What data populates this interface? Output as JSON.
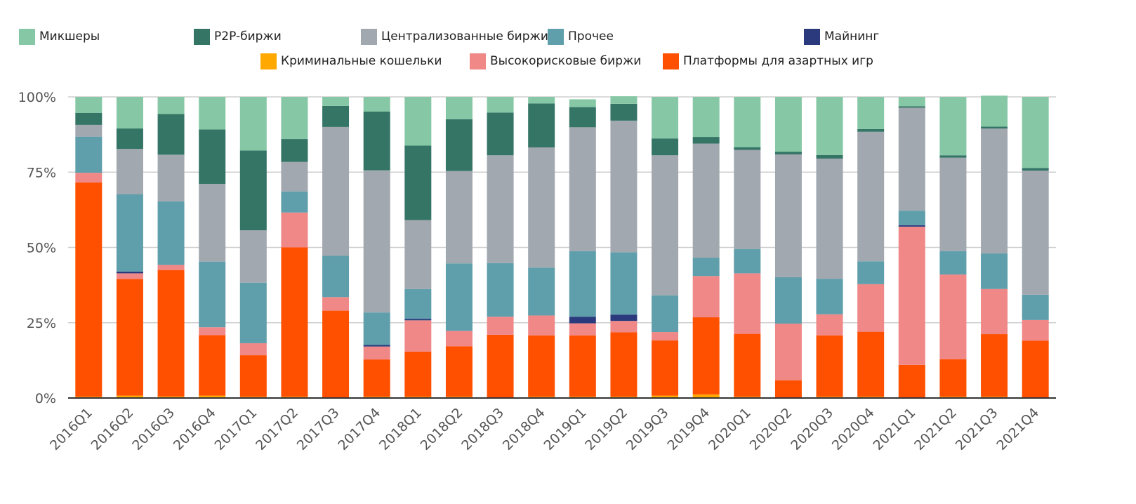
{
  "chart_data": {
    "type": "bar",
    "stacked": true,
    "title": "",
    "xlabel": "",
    "ylabel": "",
    "ylim": [
      0,
      100
    ],
    "y_ticks": [
      "0%",
      "25%",
      "50%",
      "75%",
      "100%"
    ],
    "grid": true,
    "legend_position": "top",
    "categories": [
      "2016Q1",
      "2016Q2",
      "2016Q3",
      "2016Q4",
      "2017Q1",
      "2017Q2",
      "2017Q3",
      "2017Q4",
      "2018Q1",
      "2018Q2",
      "2018Q3",
      "2018Q4",
      "2019Q1",
      "2019Q2",
      "2019Q3",
      "2019Q4",
      "2020Q1",
      "2020Q2",
      "2020Q3",
      "2020Q4",
      "2021Q1",
      "2021Q2",
      "2021Q3",
      "2021Q4"
    ],
    "series": [
      {
        "name": "Криминальные кошельки",
        "color": "#ffa800",
        "values": [
          0.4,
          0.8,
          0.5,
          0.8,
          0.4,
          0.4,
          0.0,
          0.4,
          0.4,
          0.4,
          0.0,
          0.4,
          0.4,
          0.4,
          0.8,
          1.2,
          0.4,
          0.0,
          0.4,
          0.4,
          0.0,
          0.4,
          0.4,
          0.0
        ]
      },
      {
        "name": "Платформы для азартных игр",
        "color": "#ff5000",
        "values": [
          71.2,
          38.7,
          42.0,
          20.1,
          13.8,
          49.6,
          29.0,
          12.4,
          15.0,
          16.8,
          21.0,
          20.4,
          20.4,
          21.4,
          18.3,
          25.6,
          20.9,
          5.9,
          20.4,
          21.6,
          11.0,
          12.5,
          20.8,
          19.0
        ]
      },
      {
        "name": "Высокорисковые биржи",
        "color": "#f08888",
        "values": [
          3.2,
          1.9,
          1.7,
          2.6,
          4.0,
          11.6,
          4.5,
          4.3,
          10.4,
          5.1,
          6.0,
          6.6,
          4.0,
          3.8,
          2.8,
          13.7,
          20.1,
          18.8,
          7.0,
          15.8,
          45.9,
          28.1,
          15.0,
          6.9
        ]
      },
      {
        "name": "Майнинг",
        "color": "#2a3a7c",
        "values": [
          0.0,
          0.6,
          0.0,
          0.0,
          0.0,
          0.0,
          0.0,
          0.5,
          0.5,
          0.0,
          0.0,
          0.0,
          2.2,
          2.1,
          0.0,
          0.0,
          0.0,
          0.0,
          0.0,
          0.0,
          0.5,
          0.0,
          0.0,
          0.0
        ]
      },
      {
        "name": "Прочее",
        "color": "#5f9eab",
        "values": [
          12.0,
          25.7,
          21.1,
          21.8,
          20.1,
          7.0,
          13.7,
          10.8,
          9.9,
          22.4,
          17.8,
          15.9,
          21.8,
          20.7,
          12.2,
          6.1,
          8.1,
          15.4,
          11.8,
          7.6,
          4.8,
          7.8,
          11.8,
          8.4
        ]
      },
      {
        "name": "Централизованные биржи",
        "color": "#a2a8b0",
        "values": [
          3.9,
          15.0,
          15.5,
          25.8,
          17.4,
          9.8,
          42.8,
          47.2,
          22.9,
          30.7,
          35.8,
          39.9,
          41.1,
          43.7,
          46.5,
          37.9,
          32.9,
          40.8,
          39.9,
          43.0,
          34.2,
          31.0,
          41.5,
          41.2
        ]
      },
      {
        "name": "P2P-биржи",
        "color": "#347566",
        "values": [
          4.0,
          6.8,
          13.5,
          18.1,
          26.5,
          7.6,
          7.0,
          19.5,
          24.7,
          17.2,
          14.2,
          14.6,
          6.7,
          5.6,
          5.6,
          2.2,
          0.9,
          0.9,
          1.2,
          0.9,
          0.5,
          0.8,
          0.6,
          0.9
        ]
      },
      {
        "name": "Микшеры",
        "color": "#86c8a5",
        "values": [
          5.3,
          10.5,
          5.7,
          10.8,
          17.8,
          14.0,
          3.0,
          4.9,
          16.2,
          7.4,
          5.2,
          2.2,
          2.6,
          2.5,
          13.8,
          13.3,
          16.7,
          18.2,
          19.3,
          10.7,
          3.1,
          19.4,
          10.3,
          23.6
        ]
      }
    ]
  }
}
